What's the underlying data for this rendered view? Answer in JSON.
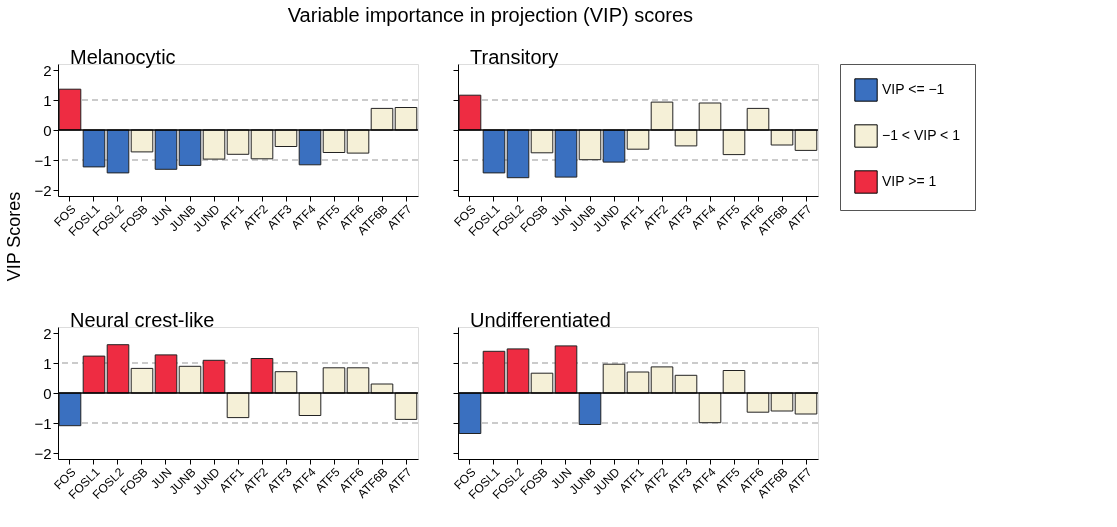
{
  "chart_data": [
    {
      "type": "bar",
      "title": "Variable importance in projection (VIP) scores",
      "ylabel": "VIP Scores",
      "legend": "right",
      "grid": false,
      "annotations": [
        "Melanocytic"
      ],
      "categories": [
        "FOS",
        "FOSL1",
        "FOSL2",
        "FOSB",
        "JUN",
        "JUNB",
        "JUND",
        "ATF1",
        "ATF2",
        "ATF3",
        "ATF4",
        "ATF5",
        "ATF6",
        "ATF6B",
        "ATF7"
      ],
      "series": [
        {
          "name": "VIP <= −1",
          "color": "#3a70c0",
          "values": [
            null,
            -1.23,
            -1.43,
            null,
            -1.31,
            -1.18,
            null,
            null,
            null,
            null,
            -1.16,
            null,
            null,
            null,
            null
          ]
        },
        {
          "name": "−1 < VIP < 1",
          "color": "#f5f0d7",
          "values": [
            null,
            null,
            null,
            -0.73,
            null,
            null,
            -0.97,
            -0.81,
            -0.96,
            -0.55,
            null,
            -0.75,
            -0.77,
            0.72,
            0.75
          ]
        },
        {
          "name": "VIP >= 1",
          "color": "#ee2c42",
          "values": [
            1.36,
            null,
            null,
            null,
            null,
            null,
            null,
            null,
            null,
            null,
            null,
            null,
            null,
            null,
            null
          ]
        }
      ],
      "ylim": [
        -2.2,
        2.2
      ],
      "yticks": [
        -2,
        -1,
        0,
        1,
        2
      ],
      "ref_lines": [
        {
          "axis": "y",
          "value": 1,
          "color": "#bbbbbb",
          "line_style": "dashed"
        },
        {
          "axis": "y",
          "value": -1,
          "color": "#bbbbbb",
          "line_style": "dashed"
        },
        {
          "axis": "y",
          "value": 0,
          "color": "#000000",
          "line_style": "solid"
        }
      ]
    },
    {
      "type": "bar",
      "legend": "right",
      "grid": false,
      "tick_labels": "x",
      "annotations": [
        "Transitory"
      ],
      "categories": [
        "FOS",
        "FOSL1",
        "FOSL2",
        "FOSB",
        "JUN",
        "JUNB",
        "JUND",
        "ATF1",
        "ATF2",
        "ATF3",
        "ATF4",
        "ATF5",
        "ATF6",
        "ATF6B",
        "ATF7"
      ],
      "series": [
        {
          "name": "VIP <= −1",
          "color": "#3a70c0",
          "values": [
            null,
            -1.43,
            -1.59,
            null,
            -1.57,
            null,
            -1.07,
            null,
            null,
            null,
            null,
            null,
            null,
            null,
            null
          ]
        },
        {
          "name": "−1 < VIP < 1",
          "color": "#f5f0d7",
          "values": [
            null,
            null,
            null,
            -0.76,
            null,
            -0.99,
            null,
            -0.64,
            0.93,
            -0.53,
            0.9,
            -0.82,
            0.72,
            -0.5,
            -0.68
          ]
        },
        {
          "name": "VIP >= 1",
          "color": "#ee2c42",
          "values": [
            1.16,
            null,
            null,
            null,
            null,
            null,
            null,
            null,
            null,
            null,
            null,
            null,
            null,
            null,
            null
          ]
        }
      ],
      "ylim": [
        -2.2,
        2.2
      ],
      "yticks": [
        -2,
        -1,
        0,
        1,
        2
      ],
      "ref_lines": [
        {
          "axis": "y",
          "value": 1,
          "color": "#bbbbbb",
          "line_style": "dashed"
        },
        {
          "axis": "y",
          "value": -1,
          "color": "#bbbbbb",
          "line_style": "dashed"
        },
        {
          "axis": "y",
          "value": 0,
          "color": "#000000",
          "line_style": "solid"
        }
      ]
    },
    {
      "type": "bar",
      "legend": "right",
      "grid": false,
      "annotations": [
        "Neural crest-like"
      ],
      "categories": [
        "FOS",
        "FOSL1",
        "FOSL2",
        "FOSB",
        "JUN",
        "JUNB",
        "JUND",
        "ATF1",
        "ATF2",
        "ATF3",
        "ATF4",
        "ATF5",
        "ATF6",
        "ATF6B",
        "ATF7"
      ],
      "series": [
        {
          "name": "VIP <= −1",
          "color": "#3a70c0",
          "values": [
            -1.09,
            null,
            null,
            null,
            null,
            null,
            null,
            null,
            null,
            null,
            null,
            null,
            null,
            null,
            null
          ]
        },
        {
          "name": "−1 < VIP < 1",
          "color": "#f5f0d7",
          "values": [
            null,
            null,
            null,
            0.82,
            null,
            0.89,
            null,
            -0.82,
            null,
            0.71,
            -0.75,
            0.84,
            0.84,
            0.3,
            -0.88
          ]
        },
        {
          "name": "VIP >= 1",
          "color": "#ee2c42",
          "values": [
            null,
            1.23,
            1.61,
            null,
            1.27,
            null,
            1.09,
            null,
            1.15,
            null,
            null,
            null,
            null,
            null,
            null
          ]
        }
      ],
      "ylim": [
        -2.2,
        2.2
      ],
      "yticks": [
        -2,
        -1,
        0,
        1,
        2
      ],
      "ref_lines": [
        {
          "axis": "y",
          "value": 1,
          "color": "#bbbbbb",
          "line_style": "dashed"
        },
        {
          "axis": "y",
          "value": -1,
          "color": "#bbbbbb",
          "line_style": "dashed"
        },
        {
          "axis": "y",
          "value": 0,
          "color": "#000000",
          "line_style": "solid"
        }
      ]
    },
    {
      "type": "bar",
      "legend": "right",
      "grid": false,
      "tick_labels": "x",
      "annotations": [
        "Undifferentiated"
      ],
      "categories": [
        "FOS",
        "FOSL1",
        "FOSL2",
        "FOSB",
        "JUN",
        "JUNB",
        "JUND",
        "ATF1",
        "ATF2",
        "ATF3",
        "ATF4",
        "ATF5",
        "ATF6",
        "ATF6B",
        "ATF7"
      ],
      "series": [
        {
          "name": "VIP <= −1",
          "color": "#3a70c0",
          "values": [
            -1.35,
            null,
            null,
            null,
            null,
            -1.05,
            null,
            null,
            null,
            null,
            null,
            null,
            null,
            null,
            null
          ]
        },
        {
          "name": "−1 < VIP < 1",
          "color": "#f5f0d7",
          "values": [
            null,
            null,
            null,
            0.66,
            null,
            null,
            0.96,
            0.7,
            0.87,
            0.59,
            -0.99,
            0.75,
            -0.64,
            -0.6,
            -0.7
          ]
        },
        {
          "name": "VIP >= 1",
          "color": "#ee2c42",
          "values": [
            null,
            1.39,
            1.47,
            null,
            1.57,
            null,
            null,
            null,
            null,
            null,
            null,
            null,
            null,
            null,
            null
          ]
        }
      ],
      "ylim": [
        -2.2,
        2.2
      ],
      "yticks": [
        -2,
        -1,
        0,
        1,
        2
      ],
      "ref_lines": [
        {
          "axis": "y",
          "value": 1,
          "color": "#bbbbbb",
          "line_style": "dashed"
        },
        {
          "axis": "y",
          "value": -1,
          "color": "#bbbbbb",
          "line_style": "dashed"
        },
        {
          "axis": "y",
          "value": 0,
          "color": "#000000",
          "line_style": "solid"
        }
      ]
    }
  ]
}
